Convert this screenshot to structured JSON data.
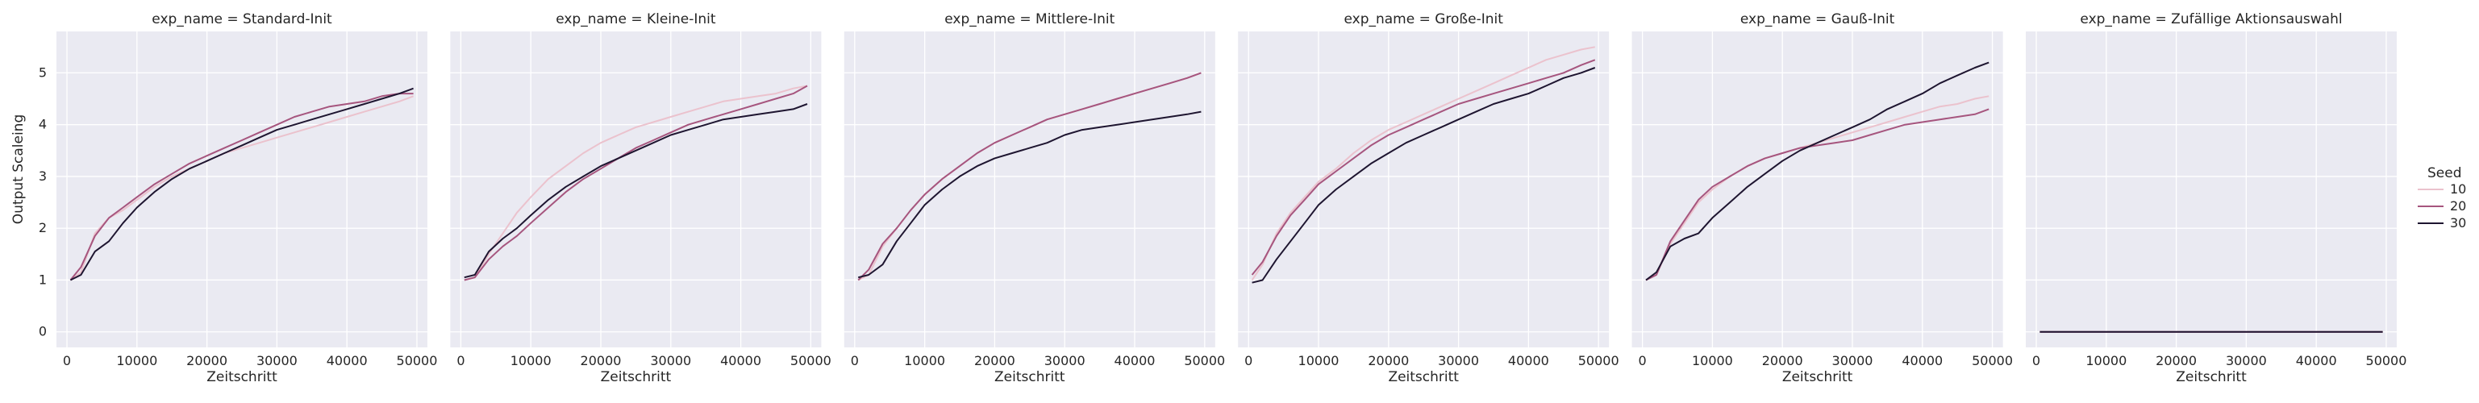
{
  "chart_data": {
    "type": "line",
    "layout": "facet-grid",
    "ylabel": "Output Scaleing",
    "xlabel": "Zeitschritt",
    "xlim": [
      -1500,
      51500
    ],
    "ylim": [
      -0.3,
      5.8
    ],
    "xticks": [
      0,
      10000,
      20000,
      30000,
      40000,
      50000
    ],
    "yticks": [
      0,
      1,
      2,
      3,
      4,
      5
    ],
    "x": [
      500,
      2000,
      4000,
      6000,
      8000,
      10000,
      12500,
      15000,
      17500,
      20000,
      22500,
      25000,
      27500,
      30000,
      32500,
      35000,
      37500,
      40000,
      42500,
      45000,
      47500,
      49500
    ],
    "legend": {
      "title": "Seed",
      "position": "right",
      "entries": [
        {
          "label": "10",
          "color": "#ebc2cd"
        },
        {
          "label": "20",
          "color": "#a6557e"
        },
        {
          "label": "30",
          "color": "#1e1530"
        }
      ]
    },
    "panels": [
      {
        "title": "exp_name = Standard-Init",
        "series": [
          {
            "name": "10",
            "values": [
              1.0,
              1.15,
              1.9,
              2.2,
              2.35,
              2.55,
              2.8,
              3.0,
              3.15,
              3.3,
              3.45,
              3.55,
              3.65,
              3.75,
              3.85,
              3.95,
              4.05,
              4.15,
              4.25,
              4.35,
              4.45,
              4.55
            ]
          },
          {
            "name": "20",
            "values": [
              1.0,
              1.25,
              1.85,
              2.2,
              2.4,
              2.6,
              2.85,
              3.05,
              3.25,
              3.4,
              3.55,
              3.7,
              3.85,
              4.0,
              4.15,
              4.25,
              4.35,
              4.4,
              4.45,
              4.55,
              4.6,
              4.6
            ]
          },
          {
            "name": "30",
            "values": [
              1.0,
              1.1,
              1.55,
              1.75,
              2.1,
              2.4,
              2.7,
              2.95,
              3.15,
              3.3,
              3.45,
              3.6,
              3.75,
              3.9,
              4.0,
              4.1,
              4.2,
              4.3,
              4.4,
              4.5,
              4.6,
              4.7
            ]
          }
        ]
      },
      {
        "title": "exp_name = Kleine-Init",
        "series": [
          {
            "name": "10",
            "values": [
              1.0,
              1.05,
              1.5,
              1.9,
              2.3,
              2.6,
              2.95,
              3.2,
              3.45,
              3.65,
              3.8,
              3.95,
              4.05,
              4.15,
              4.25,
              4.35,
              4.45,
              4.5,
              4.55,
              4.6,
              4.7,
              4.75
            ]
          },
          {
            "name": "20",
            "values": [
              1.0,
              1.05,
              1.4,
              1.65,
              1.85,
              2.1,
              2.4,
              2.7,
              2.95,
              3.15,
              3.35,
              3.55,
              3.7,
              3.85,
              4.0,
              4.1,
              4.2,
              4.3,
              4.4,
              4.5,
              4.6,
              4.75
            ]
          },
          {
            "name": "30",
            "values": [
              1.05,
              1.1,
              1.55,
              1.8,
              2.0,
              2.25,
              2.55,
              2.8,
              3.0,
              3.2,
              3.35,
              3.5,
              3.65,
              3.8,
              3.9,
              4.0,
              4.1,
              4.15,
              4.2,
              4.25,
              4.3,
              4.4
            ]
          }
        ]
      },
      {
        "title": "exp_name = Mittlere-Init",
        "series": [
          {
            "name": "10",
            "values": [
              1.0,
              1.1,
              1.65,
              2.0,
              2.35,
              2.65,
              2.95,
              3.2,
              3.45,
              3.65,
              3.8,
              3.95,
              4.1,
              4.2,
              4.3,
              4.4,
              4.5,
              4.6,
              4.7,
              4.8,
              4.9,
              5.0
            ]
          },
          {
            "name": "20",
            "values": [
              1.0,
              1.2,
              1.7,
              2.0,
              2.35,
              2.65,
              2.95,
              3.2,
              3.45,
              3.65,
              3.8,
              3.95,
              4.1,
              4.2,
              4.3,
              4.4,
              4.5,
              4.6,
              4.7,
              4.8,
              4.9,
              5.0
            ]
          },
          {
            "name": "30",
            "values": [
              1.05,
              1.1,
              1.3,
              1.75,
              2.1,
              2.45,
              2.75,
              3.0,
              3.2,
              3.35,
              3.45,
              3.55,
              3.65,
              3.8,
              3.9,
              3.95,
              4.0,
              4.05,
              4.1,
              4.15,
              4.2,
              4.25
            ]
          }
        ]
      },
      {
        "title": "exp_name = Große-Init",
        "series": [
          {
            "name": "10",
            "values": [
              1.0,
              1.3,
              1.9,
              2.3,
              2.6,
              2.9,
              3.15,
              3.45,
              3.7,
              3.9,
              4.05,
              4.2,
              4.35,
              4.5,
              4.65,
              4.8,
              4.95,
              5.1,
              5.25,
              5.35,
              5.45,
              5.5
            ]
          },
          {
            "name": "20",
            "values": [
              1.1,
              1.35,
              1.85,
              2.25,
              2.55,
              2.85,
              3.1,
              3.35,
              3.6,
              3.8,
              3.95,
              4.1,
              4.25,
              4.4,
              4.5,
              4.6,
              4.7,
              4.8,
              4.9,
              5.0,
              5.15,
              5.25
            ]
          },
          {
            "name": "30",
            "values": [
              0.95,
              1.0,
              1.4,
              1.75,
              2.1,
              2.45,
              2.75,
              3.0,
              3.25,
              3.45,
              3.65,
              3.8,
              3.95,
              4.1,
              4.25,
              4.4,
              4.5,
              4.6,
              4.75,
              4.9,
              5.0,
              5.1
            ]
          }
        ]
      },
      {
        "title": "exp_name = Gauß-Init",
        "series": [
          {
            "name": "10",
            "values": [
              1.0,
              1.1,
              1.7,
              2.1,
              2.5,
              2.75,
              3.0,
              3.2,
              3.35,
              3.45,
              3.55,
              3.65,
              3.75,
              3.85,
              3.95,
              4.05,
              4.15,
              4.25,
              4.35,
              4.4,
              4.5,
              4.55
            ]
          },
          {
            "name": "20",
            "values": [
              1.0,
              1.1,
              1.75,
              2.15,
              2.55,
              2.8,
              3.0,
              3.2,
              3.35,
              3.45,
              3.55,
              3.6,
              3.65,
              3.7,
              3.8,
              3.9,
              4.0,
              4.05,
              4.1,
              4.15,
              4.2,
              4.3
            ]
          },
          {
            "name": "30",
            "values": [
              1.0,
              1.15,
              1.65,
              1.8,
              1.9,
              2.2,
              2.5,
              2.8,
              3.05,
              3.3,
              3.5,
              3.65,
              3.8,
              3.95,
              4.1,
              4.3,
              4.45,
              4.6,
              4.8,
              4.95,
              5.1,
              5.2
            ]
          }
        ]
      },
      {
        "title": "exp_name = Zufällige Aktionsauswahl",
        "series": [
          {
            "name": "10",
            "values": [
              0,
              0,
              0,
              0,
              0,
              0,
              0,
              0,
              0,
              0,
              0,
              0,
              0,
              0,
              0,
              0,
              0,
              0,
              0,
              0,
              0,
              0
            ]
          },
          {
            "name": "20",
            "values": [
              0,
              0,
              0,
              0,
              0,
              0,
              0,
              0,
              0,
              0,
              0,
              0,
              0,
              0,
              0,
              0,
              0,
              0,
              0,
              0,
              0,
              0
            ]
          },
          {
            "name": "30",
            "values": [
              0,
              0,
              0,
              0,
              0,
              0,
              0,
              0,
              0,
              0,
              0,
              0,
              0,
              0,
              0,
              0,
              0,
              0,
              0,
              0,
              0,
              0
            ]
          }
        ]
      }
    ],
    "colors": {
      "panel_background": "#eaeaf2",
      "grid": "#ffffff",
      "text": "#262626"
    }
  }
}
